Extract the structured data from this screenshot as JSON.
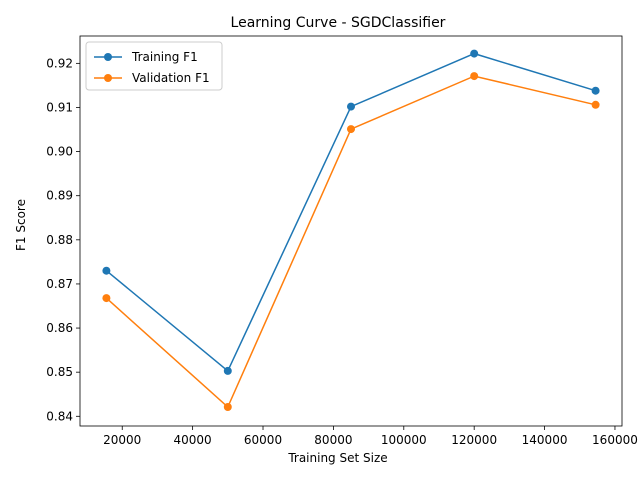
{
  "chart_data": {
    "type": "line",
    "title": "Learning Curve - SGDClassifier",
    "xlabel": "Training Set Size",
    "ylabel": "F1 Score",
    "x": [
      15500,
      50000,
      85000,
      120000,
      154500
    ],
    "xlim": [
      8000,
      162000
    ],
    "ylim": [
      0.8378,
      0.9262
    ],
    "xticks": [
      20000,
      40000,
      60000,
      80000,
      100000,
      120000,
      140000,
      160000
    ],
    "xtick_labels": [
      "20000",
      "40000",
      "60000",
      "80000",
      "100000",
      "120000",
      "140000",
      "160000"
    ],
    "yticks": [
      0.84,
      0.85,
      0.86,
      0.87,
      0.88,
      0.89,
      0.9,
      0.91,
      0.92
    ],
    "ytick_labels": [
      "0.84",
      "0.85",
      "0.86",
      "0.87",
      "0.88",
      "0.89",
      "0.90",
      "0.91",
      "0.92"
    ],
    "grid": false,
    "legend_position": "top-left",
    "series": [
      {
        "name": "Training F1",
        "color": "#1f77b4",
        "marker": "circle",
        "values": [
          0.873,
          0.8503,
          0.9102,
          0.9222,
          0.9138
        ]
      },
      {
        "name": "Validation F1",
        "color": "#ff7f0e",
        "marker": "circle",
        "values": [
          0.8668,
          0.8421,
          0.9051,
          0.9171,
          0.9106
        ]
      }
    ]
  }
}
